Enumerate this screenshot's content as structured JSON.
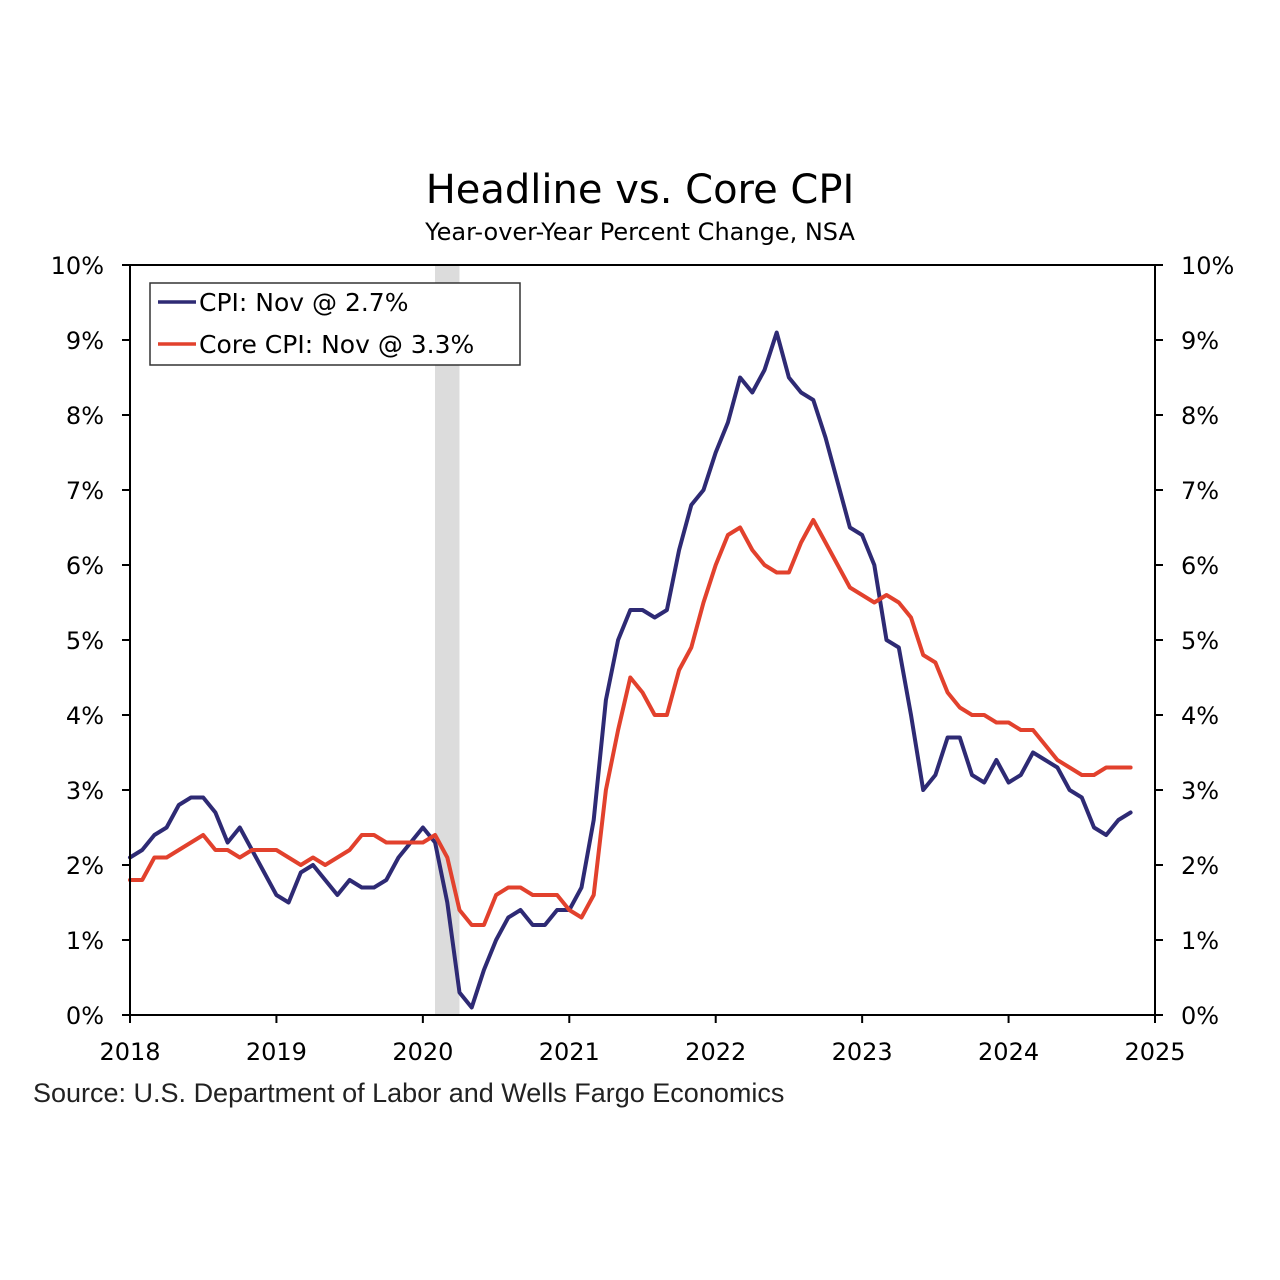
{
  "chart_data": {
    "type": "line",
    "title": "Headline vs. Core CPI",
    "subtitle": "Year-over-Year Percent Change, NSA",
    "source": "Source: U.S. Department of Labor and Wells Fargo Economics",
    "xlabel": "",
    "ylabel": "",
    "ylim": [
      0,
      10
    ],
    "xlim": [
      2018,
      2025
    ],
    "y_ticks": [
      "0%",
      "1%",
      "2%",
      "3%",
      "4%",
      "5%",
      "6%",
      "7%",
      "8%",
      "9%",
      "10%"
    ],
    "x_ticks": [
      "2018",
      "2019",
      "2020",
      "2021",
      "2022",
      "2023",
      "2024",
      "2025"
    ],
    "recession_shading": {
      "start": 2020.083,
      "end": 2020.25
    },
    "legend_position": "top-left",
    "series": [
      {
        "name": "CPI: Nov @ 2.7%",
        "color": "#2e2a74",
        "values": [
          2.1,
          2.2,
          2.4,
          2.5,
          2.8,
          2.9,
          2.9,
          2.7,
          2.3,
          2.5,
          2.2,
          1.9,
          1.6,
          1.5,
          1.9,
          2.0,
          1.8,
          1.6,
          1.8,
          1.7,
          1.7,
          1.8,
          2.1,
          2.3,
          2.5,
          2.3,
          1.5,
          0.3,
          0.1,
          0.6,
          1.0,
          1.3,
          1.4,
          1.2,
          1.2,
          1.4,
          1.4,
          1.7,
          2.6,
          4.2,
          5.0,
          5.4,
          5.4,
          5.3,
          5.4,
          6.2,
          6.8,
          7.0,
          7.5,
          7.9,
          8.5,
          8.3,
          8.6,
          9.1,
          8.5,
          8.3,
          8.2,
          7.7,
          7.1,
          6.5,
          6.4,
          6.0,
          5.0,
          4.9,
          4.0,
          3.0,
          3.2,
          3.7,
          3.7,
          3.2,
          3.1,
          3.4,
          3.1,
          3.2,
          3.5,
          3.4,
          3.3,
          3.0,
          2.9,
          2.5,
          2.4,
          2.6,
          2.7
        ]
      },
      {
        "name": "Core CPI: Nov @ 3.3%",
        "color": "#e2412d",
        "values": [
          1.8,
          1.8,
          2.1,
          2.1,
          2.2,
          2.3,
          2.4,
          2.2,
          2.2,
          2.1,
          2.2,
          2.2,
          2.2,
          2.1,
          2.0,
          2.1,
          2.0,
          2.1,
          2.2,
          2.4,
          2.4,
          2.3,
          2.3,
          2.3,
          2.3,
          2.4,
          2.1,
          1.4,
          1.2,
          1.2,
          1.6,
          1.7,
          1.7,
          1.6,
          1.6,
          1.6,
          1.4,
          1.3,
          1.6,
          3.0,
          3.8,
          4.5,
          4.3,
          4.0,
          4.0,
          4.6,
          4.9,
          5.5,
          6.0,
          6.4,
          6.5,
          6.2,
          6.0,
          5.9,
          5.9,
          6.3,
          6.6,
          6.3,
          6.0,
          5.7,
          5.6,
          5.5,
          5.6,
          5.5,
          5.3,
          4.8,
          4.7,
          4.3,
          4.1,
          4.0,
          4.0,
          3.9,
          3.9,
          3.8,
          3.8,
          3.6,
          3.4,
          3.3,
          3.2,
          3.2,
          3.3,
          3.3,
          3.3
        ]
      }
    ]
  }
}
